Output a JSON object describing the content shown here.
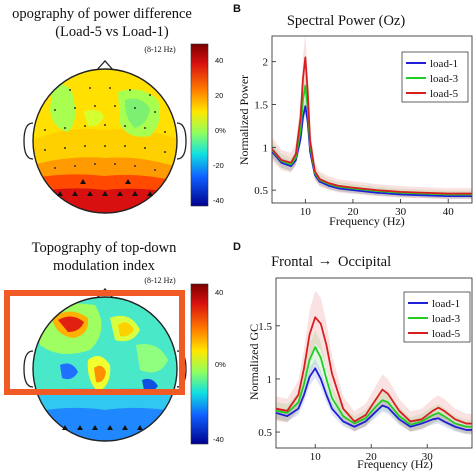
{
  "panel_a": {
    "title_line1": "opography of power difference",
    "title_line2": "(Load-5 vs Load-1)",
    "band": "(8-12 Hz)",
    "colorbar_ticks": [
      "40",
      "20",
      "0%",
      "-20",
      "-40"
    ]
  },
  "panel_c": {
    "title_line1": "Topography of top-down",
    "title_line2": "modulation index",
    "band": "(8-12 Hz)",
    "colorbar_ticks": [
      "40",
      "0%",
      "-40"
    ]
  },
  "panel_b": {
    "letter": "B",
    "title": "Spectral Power (Oz)",
    "ylabel": "Normalized Power",
    "xlabel": "Frequency (Hz)",
    "yticks": [
      "2",
      "1.5",
      "1",
      "0.5"
    ],
    "xticks": [
      "10",
      "20",
      "30",
      "40"
    ]
  },
  "panel_d": {
    "letter": "D",
    "title_left": "Frontal",
    "title_arrow": "→",
    "title_right": "Occipital",
    "ylabel": "Normalized GC",
    "xlabel": "Frequency (Hz)",
    "yticks": [
      "1.5",
      "1",
      "0.5"
    ],
    "xticks": [
      "10",
      "20",
      "30"
    ]
  },
  "legend": [
    "load-1",
    "load-3",
    "load-5"
  ],
  "colors": {
    "load1": "#1f1fd6",
    "load3": "#22cc22",
    "load5": "#d81e1e",
    "highlight_box": "#f15a24"
  },
  "chart_data": [
    {
      "type": "line",
      "title": "Spectral Power (Oz)",
      "xlabel": "Frequency (Hz)",
      "ylabel": "Normalized Power",
      "xlim": [
        3,
        45
      ],
      "ylim": [
        0.35,
        2.3
      ],
      "x": [
        3,
        5,
        7,
        8,
        9,
        9.5,
        10,
        10.5,
        11,
        12,
        13,
        15,
        17,
        20,
        25,
        30,
        35,
        40,
        45
      ],
      "series": [
        {
          "name": "load-1",
          "values": [
            0.95,
            0.82,
            0.78,
            0.85,
            1.1,
            1.35,
            1.48,
            1.3,
            0.95,
            0.68,
            0.6,
            0.55,
            0.52,
            0.5,
            0.47,
            0.45,
            0.44,
            0.43,
            0.43
          ]
        },
        {
          "name": "load-3",
          "values": [
            0.97,
            0.84,
            0.8,
            0.88,
            1.2,
            1.55,
            1.72,
            1.45,
            1.02,
            0.7,
            0.62,
            0.57,
            0.54,
            0.52,
            0.49,
            0.47,
            0.46,
            0.45,
            0.45
          ]
        },
        {
          "name": "load-5",
          "values": [
            0.98,
            0.85,
            0.82,
            0.92,
            1.35,
            1.8,
            2.05,
            1.65,
            1.08,
            0.72,
            0.63,
            0.58,
            0.55,
            0.53,
            0.5,
            0.48,
            0.47,
            0.46,
            0.46
          ]
        }
      ]
    },
    {
      "type": "line",
      "title": "Frontal → Occipital",
      "xlabel": "Frequency (Hz)",
      "ylabel": "Normalized GC",
      "xlim": [
        3,
        38
      ],
      "ylim": [
        0.35,
        1.95
      ],
      "x": [
        3,
        5,
        7,
        8,
        9,
        10,
        11,
        12,
        13,
        15,
        17,
        19,
        21,
        22,
        23,
        25,
        27,
        29,
        31,
        32,
        33,
        35,
        37,
        38
      ],
      "series": [
        {
          "name": "load-1",
          "values": [
            0.68,
            0.65,
            0.72,
            0.85,
            1.02,
            1.1,
            1.0,
            0.85,
            0.72,
            0.6,
            0.55,
            0.6,
            0.7,
            0.75,
            0.73,
            0.62,
            0.55,
            0.58,
            0.62,
            0.63,
            0.6,
            0.55,
            0.52,
            0.52
          ]
        },
        {
          "name": "load-3",
          "values": [
            0.7,
            0.68,
            0.78,
            0.95,
            1.18,
            1.3,
            1.2,
            1.0,
            0.82,
            0.65,
            0.58,
            0.63,
            0.75,
            0.8,
            0.78,
            0.65,
            0.57,
            0.6,
            0.66,
            0.68,
            0.65,
            0.58,
            0.55,
            0.55
          ]
        },
        {
          "name": "load-5",
          "values": [
            0.72,
            0.7,
            0.85,
            1.1,
            1.42,
            1.58,
            1.52,
            1.32,
            1.05,
            0.72,
            0.6,
            0.66,
            0.82,
            0.9,
            0.86,
            0.7,
            0.6,
            0.62,
            0.7,
            0.73,
            0.7,
            0.62,
            0.58,
            0.58
          ]
        }
      ]
    }
  ]
}
